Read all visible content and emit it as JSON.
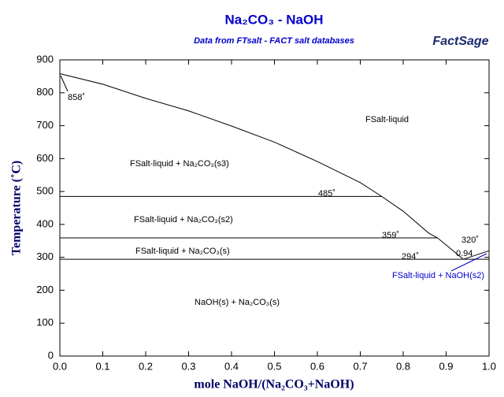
{
  "chart_data": {
    "type": "line",
    "title": "Na₂CO₃ - NaOH",
    "subtitle": "Data from FTsalt - FACT salt databases",
    "logo": "FactSage",
    "x_label": "mole NaOH/(Na₂CO₃+NaOH)",
    "y_label": "Temperature (˚C)",
    "xlim": [
      0,
      1
    ],
    "ylim": [
      0,
      900
    ],
    "xticks": [
      {
        "value": 0,
        "label": "0.0"
      },
      0.1,
      0.2,
      0.3,
      0.4,
      0.5,
      0.6,
      0.7,
      0.8,
      0.9,
      {
        "value": 1,
        "label": "1.0"
      }
    ],
    "yticks": [
      0,
      100,
      200,
      300,
      400,
      500,
      600,
      700,
      800,
      900
    ],
    "color": "#000000",
    "series": [
      {
        "x": [
          0,
          0.1,
          0.2,
          0.3,
          0.4,
          0.5,
          0.6,
          0.7,
          0.75,
          0.8,
          0.86,
          0.88,
          0.92,
          0.94
        ],
        "values": [
          858,
          826,
          783,
          745,
          699,
          650,
          591,
          527,
          485,
          440,
          373,
          359,
          316,
          294
        ]
      },
      {
        "x": [
          0.94,
          1
        ],
        "values": [
          294,
          320
        ]
      },
      {
        "x": [
          0,
          0.75
        ],
        "values": [
          485,
          485
        ]
      },
      {
        "x": [
          0,
          0.88
        ],
        "values": [
          359,
          359
        ]
      },
      {
        "x": [
          0,
          1
        ],
        "values": [
          294,
          294
        ]
      }
    ],
    "annotations": [
      "858˚",
      "485˚",
      "359˚",
      "294˚",
      "320˚",
      "0.94",
      "FSalt-liquid",
      "FSalt-liquid + Na₂CO₃(s3)",
      "FSalt-liquid + Na₂CO₃(s2)",
      "FSalt-liquid + Na₂CO₃(s)",
      "NaOH(s) + Na₂CO₃(s)",
      "FSalt-liquid + NaOH(s2)"
    ]
  }
}
